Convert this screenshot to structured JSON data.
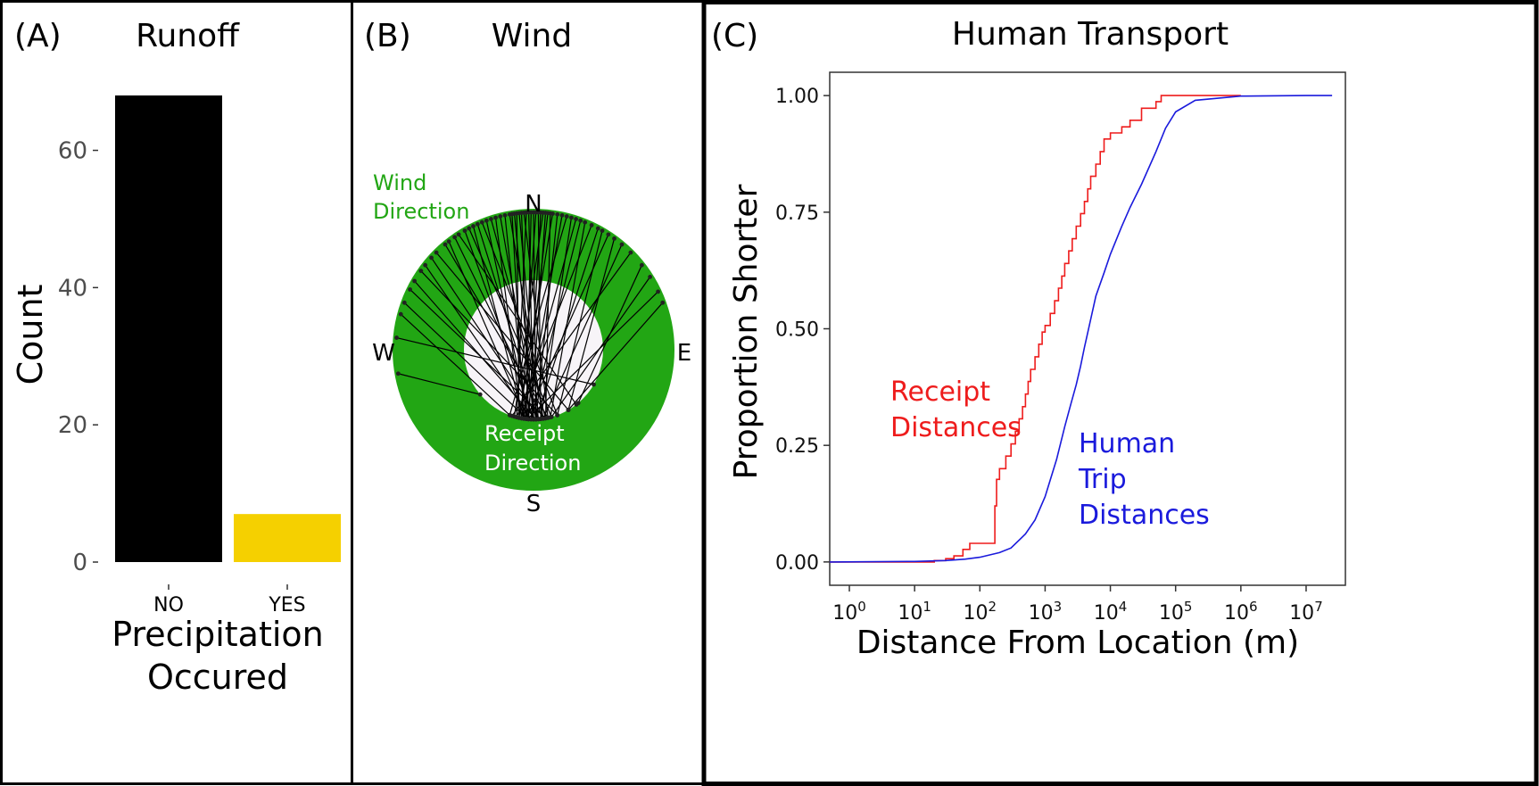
{
  "panels": {
    "a": {
      "tag": "(A)",
      "title": "Runoff"
    },
    "b": {
      "tag": "(B)",
      "title": "Wind"
    },
    "c": {
      "tag": "(C)",
      "title": "Human Transport"
    }
  },
  "chart_data": [
    {
      "type": "bar",
      "title": "Runoff",
      "categories": [
        "NO",
        "YES"
      ],
      "values": [
        68,
        7
      ],
      "bar_colors": [
        "#000000",
        "#f5d000"
      ],
      "xlabel_lines": [
        "Precipitation",
        "Occured"
      ],
      "ylabel": "Count",
      "yticks": [
        0,
        20,
        40,
        60
      ],
      "ylim": [
        0,
        68
      ],
      "grid": false
    },
    {
      "type": "other",
      "subtype": "circular-direction-link-plot",
      "title": "Wind",
      "compass": [
        "N",
        "E",
        "S",
        "W"
      ],
      "ring_label_lines": [
        "Wind",
        "Direction"
      ],
      "inner_label_lines": [
        "Receipt",
        "Direction"
      ],
      "ring_color": "#22a614",
      "ring_label_color": "#22a614",
      "inner_label_color": "#ffffff",
      "links": [
        [
          -75,
          200
        ],
        [
          -70,
          185
        ],
        [
          -64,
          170
        ],
        [
          -60,
          178
        ],
        [
          -55,
          160
        ],
        [
          -52,
          182
        ],
        [
          -48,
          175
        ],
        [
          -45,
          150
        ],
        [
          -40,
          168
        ],
        [
          -38,
          186
        ],
        [
          -35,
          172
        ],
        [
          -33,
          142
        ],
        [
          -30,
          180
        ],
        [
          -28,
          165
        ],
        [
          -26,
          188
        ],
        [
          -24,
          176
        ],
        [
          -22,
          160
        ],
        [
          -20,
          184
        ],
        [
          -18,
          170
        ],
        [
          -16,
          190
        ],
        [
          -14,
          178
        ],
        [
          -12,
          186
        ],
        [
          -10,
          172
        ],
        [
          -9,
          188
        ],
        [
          -8,
          180
        ],
        [
          -7,
          192
        ],
        [
          -6,
          176
        ],
        [
          -5,
          184
        ],
        [
          -4,
          168
        ],
        [
          -3,
          194
        ],
        [
          -2,
          180
        ],
        [
          -1,
          186
        ],
        [
          0,
          178
        ],
        [
          1,
          190
        ],
        [
          2,
          174
        ],
        [
          3,
          184
        ],
        [
          4,
          196
        ],
        [
          5,
          182
        ],
        [
          6,
          188
        ],
        [
          7,
          170
        ],
        [
          8,
          192
        ],
        [
          10,
          178
        ],
        [
          12,
          186
        ],
        [
          14,
          200
        ],
        [
          16,
          174
        ],
        [
          18,
          190
        ],
        [
          20,
          182
        ],
        [
          22,
          166
        ],
        [
          25,
          194
        ],
        [
          28,
          178
        ],
        [
          30,
          160
        ],
        [
          33,
          186
        ],
        [
          36,
          150
        ],
        [
          40,
          172
        ],
        [
          45,
          198
        ],
        [
          52,
          140
        ],
        [
          58,
          165
        ],
        [
          65,
          185
        ],
        [
          -85,
          120
        ],
        [
          -100,
          230
        ],
        [
          70,
          150
        ]
      ]
    },
    {
      "type": "line",
      "title": "Human Transport",
      "xlabel": "Distance From Location (m)",
      "ylabel": "Proportion Shorter",
      "x_scale": "log10",
      "xlim": [
        0.5,
        40000000
      ],
      "ylim": [
        -0.05,
        1.05
      ],
      "xticks": [
        1,
        10,
        100,
        1000,
        10000,
        100000,
        1000000,
        10000000
      ],
      "xtick_exponents": [
        "0",
        "1",
        "2",
        "3",
        "4",
        "5",
        "6",
        "7"
      ],
      "yticks": [
        0.0,
        0.25,
        0.5,
        0.75,
        1.0
      ],
      "ytick_labels": [
        "0.00",
        "0.25",
        "0.50",
        "0.75",
        "1.00"
      ],
      "legend": "inline labels",
      "grid": false,
      "series": [
        {
          "name_lines": [
            "Receipt",
            "Distances"
          ],
          "color": "#ee1c1c",
          "step": true,
          "x": [
            0.5,
            20,
            30,
            40,
            55,
            70,
            100,
            140,
            160,
            170,
            180,
            200,
            250,
            300,
            350,
            400,
            450,
            500,
            550,
            600,
            700,
            800,
            900,
            1000,
            1200,
            1400,
            1600,
            1800,
            2000,
            2300,
            2600,
            3000,
            3500,
            4000,
            4500,
            5000,
            6000,
            7000,
            8000,
            10000,
            12000,
            15000,
            20000,
            30000,
            50000,
            60000,
            80000,
            100000,
            150000,
            1000000
          ],
          "y": [
            0.0,
            0.003,
            0.007,
            0.013,
            0.027,
            0.04,
            0.04,
            0.04,
            0.04,
            0.12,
            0.177,
            0.2,
            0.227,
            0.253,
            0.28,
            0.307,
            0.333,
            0.36,
            0.387,
            0.413,
            0.44,
            0.467,
            0.493,
            0.507,
            0.533,
            0.56,
            0.587,
            0.613,
            0.64,
            0.667,
            0.693,
            0.72,
            0.747,
            0.773,
            0.8,
            0.827,
            0.853,
            0.88,
            0.907,
            0.92,
            0.92,
            0.933,
            0.947,
            0.973,
            0.987,
            1.0,
            1.0,
            1.0,
            1.0,
            1.0
          ]
        },
        {
          "name_lines": [
            "Human",
            "Trip",
            "Distances"
          ],
          "color": "#1a1adc",
          "step": false,
          "x": [
            0.5,
            10,
            30,
            60,
            100,
            200,
            300,
            500,
            700,
            1000,
            1500,
            2000,
            2500,
            3000,
            3500,
            4000,
            5000,
            6000,
            8000,
            10000,
            15000,
            20000,
            30000,
            50000,
            70000,
            100000,
            200000,
            1000000,
            10000000,
            25000000
          ],
          "y": [
            0.0,
            0.001,
            0.003,
            0.006,
            0.01,
            0.02,
            0.03,
            0.06,
            0.09,
            0.14,
            0.22,
            0.29,
            0.34,
            0.38,
            0.42,
            0.46,
            0.52,
            0.57,
            0.62,
            0.66,
            0.72,
            0.76,
            0.81,
            0.88,
            0.93,
            0.965,
            0.99,
            0.999,
            1.0,
            1.0
          ]
        }
      ]
    }
  ]
}
